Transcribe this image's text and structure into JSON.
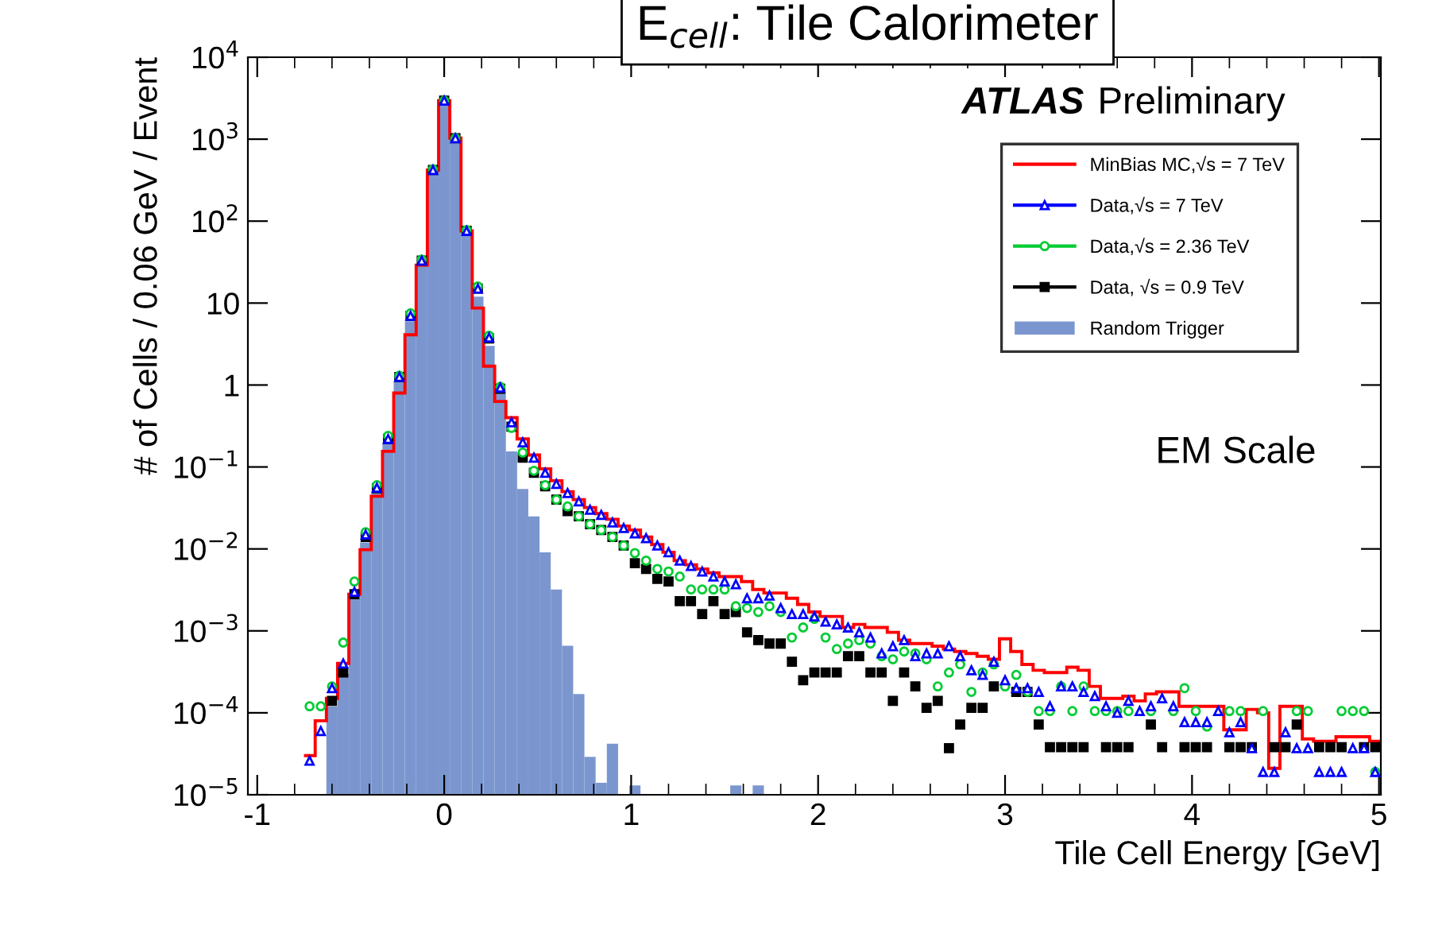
{
  "chart_data": {
    "type": "histogram",
    "title": "E$_{cell}$: Tile Calorimeter",
    "xlabel": "Tile Cell Energy [GeV]",
    "ylabel": "# of Cells / 0.06 GeV / Event",
    "annotations": [
      "ATLAS Preliminary",
      "EM Scale"
    ],
    "log": "y",
    "xlim": [
      -1.05,
      5.01
    ],
    "xticks": [
      -1,
      0,
      1,
      2,
      3,
      4,
      5
    ],
    "ylim": [
      1e-05,
      10000
    ],
    "yticks": [
      {
        "value": 1e-05,
        "label": "10$^{−5}$"
      },
      {
        "value": 0.0001,
        "label": "10$^{−4}$"
      },
      {
        "value": 0.001,
        "label": "10$^{−3}$"
      },
      {
        "value": 0.01,
        "label": "10$^{−2}$"
      },
      {
        "value": 0.1,
        "label": "10$^{−1}$"
      },
      1,
      10,
      {
        "value": 100,
        "label": "10$^{2}$"
      },
      {
        "value": 1000,
        "label": "10$^{3}$"
      },
      {
        "value": 10000,
        "label": "10$^{4}$"
      }
    ],
    "legend": "top right",
    "bins": [
      -0.75,
      -0.69,
      -0.63,
      -0.57,
      -0.51,
      -0.45,
      -0.39,
      -0.33,
      -0.27,
      -0.21,
      -0.15,
      -0.09,
      -0.03,
      0.03,
      0.09,
      0.15,
      0.21,
      0.27,
      0.33,
      0.39,
      0.45,
      0.51,
      0.57,
      0.63,
      0.69,
      0.75,
      0.81,
      0.87,
      0.93,
      0.99,
      1.05,
      1.11,
      1.17,
      1.23,
      1.29,
      1.35,
      1.41,
      1.47,
      1.53,
      1.59,
      1.65,
      1.71,
      1.77,
      1.83,
      1.89,
      1.95,
      2.01,
      2.07,
      2.13,
      2.19,
      2.25,
      2.31,
      2.37,
      2.43,
      2.49,
      2.55,
      2.61,
      2.67,
      2.73,
      2.79,
      2.85,
      2.91,
      2.97,
      3.03,
      3.09,
      3.15,
      3.21,
      3.27,
      3.33,
      3.39,
      3.45,
      3.51,
      3.57,
      3.63,
      3.69,
      3.75,
      3.81,
      3.87,
      3.93,
      3.99,
      4.05,
      4.11,
      4.17,
      4.23,
      4.29,
      4.35,
      4.41,
      4.47,
      4.53,
      4.59,
      4.65,
      4.71,
      4.77,
      4.83,
      4.89,
      4.95,
      5.01
    ],
    "x": [
      -0.72,
      -0.66,
      -0.6,
      -0.54,
      -0.48,
      -0.42,
      -0.36,
      -0.3,
      -0.24,
      -0.18,
      -0.12,
      -0.06,
      0,
      0.06,
      0.12,
      0.18,
      0.24,
      0.3,
      0.36,
      0.42,
      0.48,
      0.54,
      0.6,
      0.66,
      0.72,
      0.78,
      0.84,
      0.9,
      0.96,
      1.02,
      1.08,
      1.14,
      1.2,
      1.26,
      1.32,
      1.38,
      1.44,
      1.5,
      1.56,
      1.62,
      1.68,
      1.74,
      1.8,
      1.86,
      1.92,
      1.98,
      2.04,
      2.1,
      2.16,
      2.22,
      2.28,
      2.34,
      2.4,
      2.46,
      2.52,
      2.58,
      2.64,
      2.7,
      2.76,
      2.82,
      2.88,
      2.94,
      3,
      3.06,
      3.12,
      3.18,
      3.24,
      3.3,
      3.36,
      3.42,
      3.48,
      3.54,
      3.6,
      3.66,
      3.72,
      3.78,
      3.84,
      3.9,
      3.96,
      4.02,
      4.08,
      4.14,
      4.2,
      4.26,
      4.32,
      4.38,
      4.44,
      4.5,
      4.56,
      4.62,
      4.68,
      4.74,
      4.8,
      4.86,
      4.92,
      4.98
    ],
    "series": [
      {
        "name": "Random Trigger",
        "type": "histogram",
        "color": "#7b96cf",
        "values": [
          null,
          null,
          0.00012,
          0.0003,
          0.0025,
          0.012,
          0.05,
          0.2,
          1.1,
          6,
          30,
          400,
          2950,
          1030,
          76,
          12,
          3,
          0.8,
          0.155,
          0.054,
          0.025,
          0.0091,
          0.0032,
          0.00066,
          0.00017,
          2.9e-05,
          1.4e-05,
          4.2e-05,
          null,
          1.3e-05,
          null,
          null,
          null,
          null,
          null,
          null,
          null,
          null,
          1.3e-05,
          null,
          1.3e-05,
          null,
          null,
          null,
          null,
          null,
          null,
          null,
          null,
          null,
          null,
          null,
          null,
          null,
          null,
          null,
          null,
          null,
          null,
          null,
          null,
          null,
          null,
          null,
          null,
          null,
          null,
          null,
          null,
          null,
          null,
          null,
          null,
          null,
          null,
          null,
          null,
          null,
          null,
          null,
          null,
          null,
          null,
          null,
          null,
          null,
          null,
          null,
          null,
          null,
          null,
          null,
          null,
          null,
          null,
          null
        ]
      },
      {
        "name": "MinBias MC,√s = 7 TeV",
        "type": "step",
        "color": "#ff0000",
        "values": [
          3e-05,
          8e-05,
          0.00015,
          0.0004,
          0.0028,
          0.0098,
          0.044,
          0.155,
          0.8,
          4.1,
          29,
          420,
          2950,
          1030,
          76,
          8.7,
          1.7,
          0.63,
          0.4,
          0.22,
          0.14,
          0.095,
          0.068,
          0.05,
          0.04,
          0.032,
          0.027,
          0.023,
          0.019,
          0.017,
          0.014,
          0.0113,
          0.0091,
          0.0072,
          0.0064,
          0.0057,
          0.0051,
          0.0046,
          0.0046,
          0.004,
          0.0032,
          0.0029,
          0.0029,
          0.0025,
          0.0021,
          0.0017,
          0.0015,
          0.0015,
          0.0011,
          0.0012,
          0.0011,
          0.0011,
          0.00096,
          0.00077,
          0.0007,
          0.0007,
          0.00065,
          0.0006,
          0.00056,
          0.00053,
          0.00049,
          0.00045,
          0.0008,
          0.00056,
          0.00039,
          0.00033,
          0.00031,
          0.00031,
          0.00036,
          0.00033,
          0.00021,
          0.00015,
          0.00015,
          0.00016,
          0.00014,
          0.00017,
          0.00018,
          0.00018,
          0.00012,
          0.00012,
          0.00012,
          0.00012,
          6.2e-05,
          6.2e-05,
          0.00011,
          0.0001,
          2.1e-05,
          0.00012,
          0.00012,
          4.8e-05,
          4.5e-05,
          4.5e-05,
          5.1e-05,
          5.1e-05,
          5.1e-05,
          4.5e-05
        ]
      },
      {
        "name": "Data,√s = 7 TeV",
        "type": "scatter",
        "marker": "triangle",
        "color": "#0000ff",
        "values": [
          2.6e-05,
          6e-05,
          0.0002,
          0.0004,
          0.003,
          0.015,
          0.056,
          0.22,
          1.26,
          7,
          33,
          420,
          2950,
          1030,
          76,
          15,
          3.8,
          0.93,
          0.35,
          0.2,
          0.13,
          0.085,
          0.062,
          0.048,
          0.038,
          0.03,
          0.026,
          0.021,
          0.018,
          0.0155,
          0.0135,
          0.011,
          0.0091,
          0.0072,
          0.0062,
          0.0053,
          0.0046,
          0.004,
          0.0037,
          0.0025,
          0.0025,
          0.0027,
          0.0019,
          0.0016,
          0.0016,
          0.0015,
          0.0013,
          0.0012,
          0.0011,
          0.00096,
          0.00083,
          0.00053,
          0.00065,
          0.00077,
          0.00049,
          0.00053,
          0.00053,
          0.00065,
          0.00049,
          0.00033,
          0.00029,
          0.00042,
          0.00025,
          0.0002,
          0.0002,
          0.00018,
          0.00012,
          0.00021,
          0.00021,
          0.00018,
          0.00016,
          0.00012,
          0.0001,
          0.00014,
          0.000105,
          0.00012,
          0.00015,
          0.00012,
          7.7e-05,
          7.7e-05,
          7.7e-05,
          0.000105,
          5.8e-05,
          7.7e-05,
          3.7e-05,
          1.9e-05,
          1.9e-05,
          5.8e-05,
          3.7e-05,
          3.7e-05,
          1.9e-05,
          1.9e-05,
          1.9e-05,
          3.7e-05,
          3.7e-05,
          1.9e-05
        ]
      },
      {
        "name": "Data,√s = 2.36 TeV",
        "type": "scatter",
        "marker": "circle",
        "color": "#00cc33",
        "values": [
          0.00012,
          0.00012,
          0.00021,
          0.00072,
          0.004,
          0.016,
          0.06,
          0.24,
          1.3,
          7.5,
          34,
          430,
          2950,
          1030,
          78,
          16,
          4,
          0.95,
          0.3,
          0.15,
          0.09,
          0.06,
          0.04,
          0.033,
          0.025,
          0.02,
          0.017,
          0.014,
          0.011,
          0.0089,
          0.0072,
          0.0057,
          0.0053,
          0.0046,
          0.0032,
          0.0032,
          0.0032,
          0.0032,
          0.002,
          0.0019,
          0.0017,
          0.002,
          0.0017,
          0.00083,
          0.0011,
          0.0014,
          0.00083,
          0.0006,
          0.0007,
          0.00077,
          0.0007,
          0.00049,
          0.00045,
          0.00056,
          0.00053,
          0.00045,
          0.00021,
          0.00031,
          0.00039,
          0.00018,
          0.00031,
          0.00039,
          0.00021,
          0.00029,
          0.00018,
          0.000105,
          0.000105,
          0.00021,
          0.000105,
          0.00021,
          0.000105,
          0.000105,
          0.000105,
          0.000105,
          null,
          0.000105,
          null,
          0.000105,
          0.0002,
          0.000105,
          6.8e-05,
          null,
          0.000105,
          0.000105,
          null,
          0.000105,
          null,
          null,
          0.000105,
          0.000105,
          null,
          null,
          0.000105,
          0.000105,
          0.000105,
          1.9e-05
        ]
      },
      {
        "name": "Data, √s = 0.9 TeV",
        "type": "scatter",
        "marker": "square",
        "color": "#000000",
        "values": [
          null,
          null,
          0.00014,
          0.00031,
          0.0028,
          0.014,
          0.055,
          0.22,
          1.25,
          7,
          33,
          420,
          2950,
          1030,
          76,
          15,
          3.7,
          0.9,
          0.31,
          0.13,
          0.085,
          0.058,
          0.04,
          0.029,
          0.025,
          0.02,
          0.017,
          0.014,
          0.011,
          0.0067,
          0.0057,
          0.0043,
          0.004,
          0.0023,
          0.0023,
          0.0016,
          0.0023,
          0.0016,
          0.0017,
          0.00096,
          0.00077,
          0.0007,
          0.0007,
          0.00042,
          0.00025,
          0.00031,
          0.00031,
          0.00031,
          0.00049,
          0.00049,
          0.00031,
          0.00031,
          0.00014,
          0.00031,
          0.00021,
          0.000115,
          0.00014,
          3.7e-05,
          7.2e-05,
          0.000115,
          0.000115,
          0.00021,
          null,
          0.00018,
          0.00018,
          7.2e-05,
          3.8e-05,
          3.8e-05,
          3.8e-05,
          3.8e-05,
          null,
          3.8e-05,
          3.8e-05,
          3.8e-05,
          null,
          7.2e-05,
          3.8e-05,
          null,
          3.8e-05,
          3.8e-05,
          3.8e-05,
          null,
          3.8e-05,
          3.8e-05,
          3.8e-05,
          null,
          3.8e-05,
          3.8e-05,
          7.2e-05,
          null,
          3.8e-05,
          3.8e-05,
          3.8e-05,
          null,
          3.8e-05,
          3.8e-05
        ]
      }
    ]
  }
}
